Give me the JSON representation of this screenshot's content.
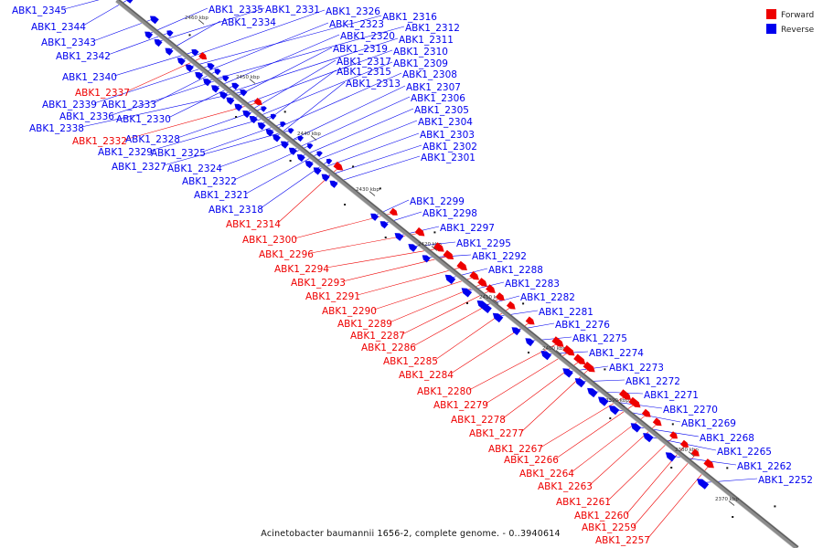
{
  "legend": {
    "forward_label": "Forward",
    "reverse_label": "Reverse",
    "forward_color": "#ee0000",
    "reverse_color": "#0000ee"
  },
  "caption": "Acinetobacter baumannii 1656-2, complete genome. - 0..3940614",
  "backbone_color": "#8c8c8c",
  "ticks": [
    {
      "label": "2460 kbp"
    },
    {
      "label": "2450 kbp"
    },
    {
      "label": "2440 kbp"
    },
    {
      "label": "2430 kbp"
    },
    {
      "label": "2420 kbp"
    },
    {
      "label": "2410 kbp"
    },
    {
      "label": "2400 kbp"
    },
    {
      "label": "2390 kbp"
    },
    {
      "label": "2380 kbp"
    },
    {
      "label": "2370 kbp"
    }
  ],
  "genes": [
    {
      "name": "ABK1_2345",
      "strand": "reverse"
    },
    {
      "name": "ABK1_2344",
      "strand": "reverse"
    },
    {
      "name": "ABK1_2343",
      "strand": "reverse"
    },
    {
      "name": "ABK1_2342",
      "strand": "reverse"
    },
    {
      "name": "ABK1_2340",
      "strand": "reverse"
    },
    {
      "name": "ABK1_2337",
      "strand": "forward"
    },
    {
      "name": "ABK1_2339",
      "strand": "reverse"
    },
    {
      "name": "ABK1_2333",
      "strand": "reverse"
    },
    {
      "name": "ABK1_2336",
      "strand": "reverse"
    },
    {
      "name": "ABK1_2330",
      "strand": "reverse"
    },
    {
      "name": "ABK1_2338",
      "strand": "reverse"
    },
    {
      "name": "ABK1_2332",
      "strand": "forward"
    },
    {
      "name": "ABK1_2328",
      "strand": "reverse"
    },
    {
      "name": "ABK1_2329",
      "strand": "reverse"
    },
    {
      "name": "ABK1_2325",
      "strand": "reverse"
    },
    {
      "name": "ABK1_2327",
      "strand": "reverse"
    },
    {
      "name": "ABK1_2324",
      "strand": "reverse"
    },
    {
      "name": "ABK1_2322",
      "strand": "reverse"
    },
    {
      "name": "ABK1_2321",
      "strand": "reverse"
    },
    {
      "name": "ABK1_2318",
      "strand": "reverse"
    },
    {
      "name": "ABK1_2314",
      "strand": "forward"
    },
    {
      "name": "ABK1_2300",
      "strand": "forward"
    },
    {
      "name": "ABK1_2296",
      "strand": "forward"
    },
    {
      "name": "ABK1_2294",
      "strand": "forward"
    },
    {
      "name": "ABK1_2293",
      "strand": "forward"
    },
    {
      "name": "ABK1_2291",
      "strand": "forward"
    },
    {
      "name": "ABK1_2290",
      "strand": "forward"
    },
    {
      "name": "ABK1_2289",
      "strand": "forward"
    },
    {
      "name": "ABK1_2287",
      "strand": "forward"
    },
    {
      "name": "ABK1_2286",
      "strand": "forward"
    },
    {
      "name": "ABK1_2285",
      "strand": "forward"
    },
    {
      "name": "ABK1_2284",
      "strand": "forward"
    },
    {
      "name": "ABK1_2280",
      "strand": "forward"
    },
    {
      "name": "ABK1_2279",
      "strand": "forward"
    },
    {
      "name": "ABK1_2278",
      "strand": "forward"
    },
    {
      "name": "ABK1_2277",
      "strand": "forward"
    },
    {
      "name": "ABK1_2267",
      "strand": "forward"
    },
    {
      "name": "ABK1_2266",
      "strand": "forward"
    },
    {
      "name": "ABK1_2264",
      "strand": "forward"
    },
    {
      "name": "ABK1_2263",
      "strand": "forward"
    },
    {
      "name": "ABK1_2261",
      "strand": "forward"
    },
    {
      "name": "ABK1_2260",
      "strand": "forward"
    },
    {
      "name": "ABK1_2259",
      "strand": "forward"
    },
    {
      "name": "ABK1_2257",
      "strand": "forward"
    },
    {
      "name": "ABK1_2335",
      "strand": "reverse"
    },
    {
      "name": "ABK1_2331",
      "strand": "reverse"
    },
    {
      "name": "ABK1_2334",
      "strand": "reverse"
    },
    {
      "name": "ABK1_2326",
      "strand": "reverse"
    },
    {
      "name": "ABK1_2316",
      "strand": "reverse"
    },
    {
      "name": "ABK1_2323",
      "strand": "reverse"
    },
    {
      "name": "ABK1_2312",
      "strand": "reverse"
    },
    {
      "name": "ABK1_2320",
      "strand": "reverse"
    },
    {
      "name": "ABK1_2311",
      "strand": "reverse"
    },
    {
      "name": "ABK1_2319",
      "strand": "reverse"
    },
    {
      "name": "ABK1_2310",
      "strand": "reverse"
    },
    {
      "name": "ABK1_2317",
      "strand": "reverse"
    },
    {
      "name": "ABK1_2309",
      "strand": "reverse"
    },
    {
      "name": "ABK1_2315",
      "strand": "reverse"
    },
    {
      "name": "ABK1_2308",
      "strand": "reverse"
    },
    {
      "name": "ABK1_2313",
      "strand": "reverse"
    },
    {
      "name": "ABK1_2307",
      "strand": "reverse"
    },
    {
      "name": "ABK1_2306",
      "strand": "reverse"
    },
    {
      "name": "ABK1_2305",
      "strand": "reverse"
    },
    {
      "name": "ABK1_2304",
      "strand": "reverse"
    },
    {
      "name": "ABK1_2303",
      "strand": "reverse"
    },
    {
      "name": "ABK1_2302",
      "strand": "reverse"
    },
    {
      "name": "ABK1_2301",
      "strand": "reverse"
    },
    {
      "name": "ABK1_2299",
      "strand": "reverse"
    },
    {
      "name": "ABK1_2298",
      "strand": "reverse"
    },
    {
      "name": "ABK1_2297",
      "strand": "reverse"
    },
    {
      "name": "ABK1_2295",
      "strand": "reverse"
    },
    {
      "name": "ABK1_2292",
      "strand": "reverse"
    },
    {
      "name": "ABK1_2288",
      "strand": "reverse"
    },
    {
      "name": "ABK1_2283",
      "strand": "reverse"
    },
    {
      "name": "ABK1_2282",
      "strand": "reverse"
    },
    {
      "name": "ABK1_2281",
      "strand": "reverse"
    },
    {
      "name": "ABK1_2276",
      "strand": "reverse"
    },
    {
      "name": "ABK1_2275",
      "strand": "reverse"
    },
    {
      "name": "ABK1_2274",
      "strand": "reverse"
    },
    {
      "name": "ABK1_2273",
      "strand": "reverse"
    },
    {
      "name": "ABK1_2272",
      "strand": "reverse"
    },
    {
      "name": "ABK1_2271",
      "strand": "reverse"
    },
    {
      "name": "ABK1_2270",
      "strand": "reverse"
    },
    {
      "name": "ABK1_2269",
      "strand": "reverse"
    },
    {
      "name": "ABK1_2268",
      "strand": "reverse"
    },
    {
      "name": "ABK1_2265",
      "strand": "reverse"
    },
    {
      "name": "ABK1_2262",
      "strand": "reverse"
    },
    {
      "name": "ABK1_2252",
      "strand": "reverse"
    }
  ]
}
